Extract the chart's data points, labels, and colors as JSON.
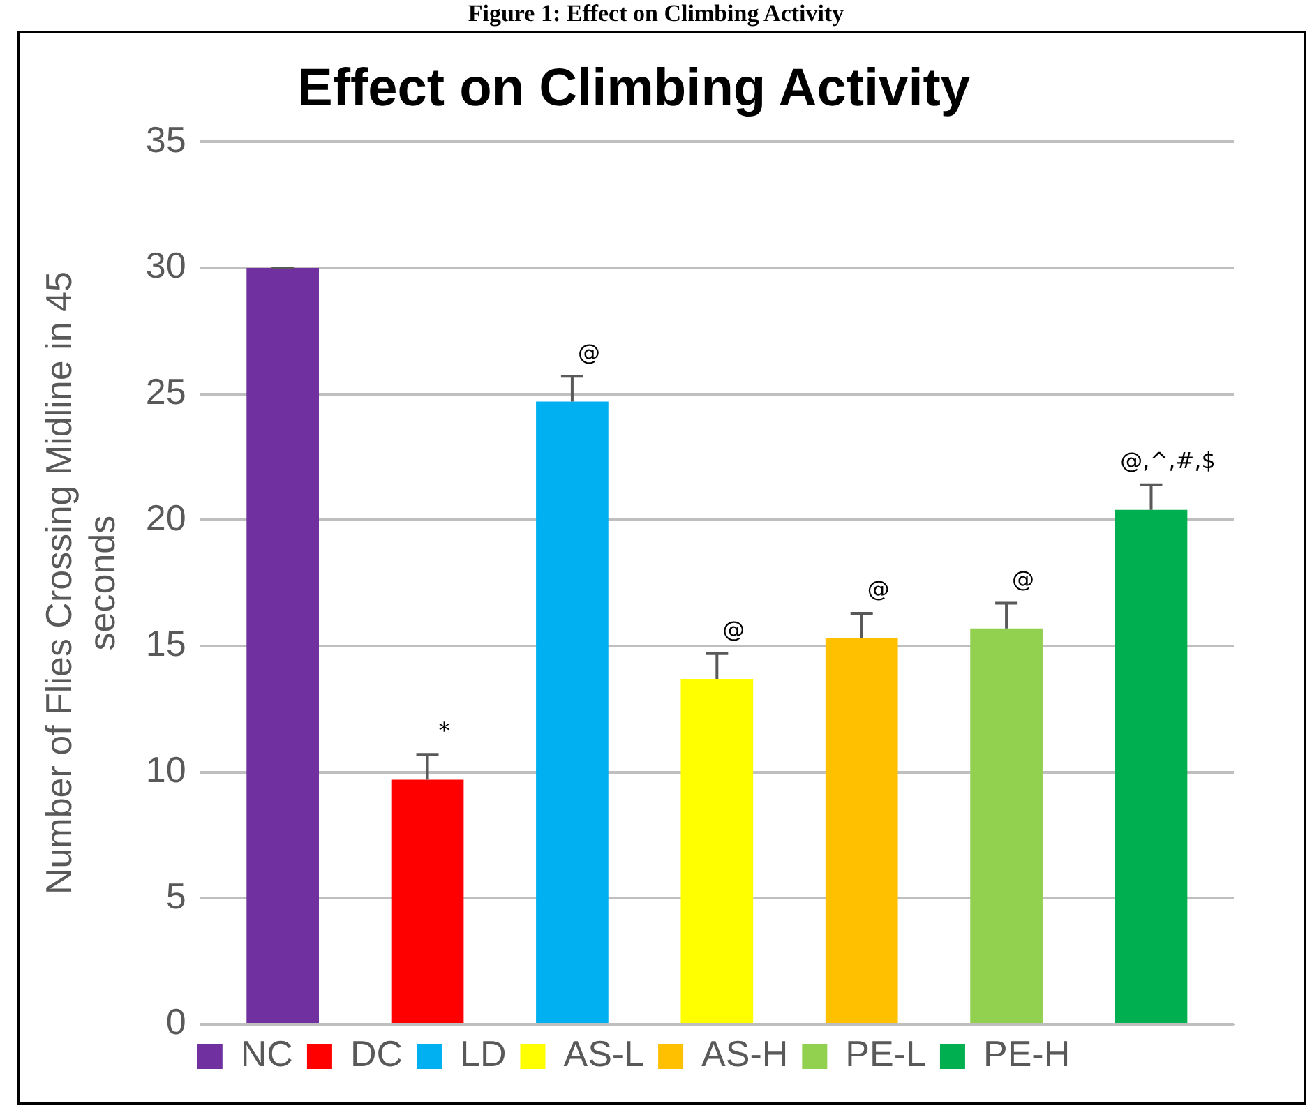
{
  "chart_data": {
    "type": "bar",
    "title": "Effect on Climbing Activity",
    "ylabel": "Number of Flies Crossing Midline in 45 seconds",
    "categories": [
      null
    ],
    "series": [
      {
        "name": "NC",
        "color": "#7030a0",
        "values": [
          30
        ],
        "errors": [
          0
        ]
      },
      {
        "name": "DC",
        "color": "#ff0000",
        "values": [
          9.7
        ],
        "errors": [
          1.0
        ]
      },
      {
        "name": "LD",
        "color": "#00b0f0",
        "values": [
          24.7
        ],
        "errors": [
          1.0
        ]
      },
      {
        "name": "AS-L",
        "color": "#ffff00",
        "values": [
          13.7
        ],
        "errors": [
          1.0
        ]
      },
      {
        "name": "AS-H",
        "color": "#ffc000",
        "values": [
          15.3
        ],
        "errors": [
          1.0
        ]
      },
      {
        "name": "PE-L",
        "color": "#92d050",
        "values": [
          15.7
        ],
        "errors": [
          1.0
        ]
      },
      {
        "name": "PE-H",
        "color": "#00b050",
        "values": [
          20.4
        ],
        "errors": [
          1.0
        ]
      }
    ],
    "ylim": [
      0,
      35
    ],
    "yticks": [
      0,
      5,
      10,
      15,
      20,
      25,
      30,
      35
    ],
    "grid": "y",
    "legend": "bottom",
    "annotations": [
      "Figure 1: Effect on Climbing Activity",
      {
        "text": "*",
        "y": 10.7
      },
      {
        "text": "@",
        "y": 25.7
      },
      {
        "text": "@",
        "y": 14.7
      },
      {
        "text": "@",
        "y": 16.3
      },
      {
        "text": "@",
        "y": 16.7
      },
      {
        "text": "@,^,#,$",
        "y": 21.4
      }
    ]
  }
}
